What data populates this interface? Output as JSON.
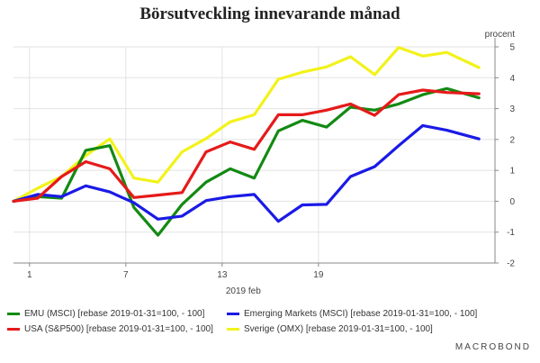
{
  "chart_data": {
    "type": "line",
    "title": "Börsutveckling innevarande månad",
    "ylabel": "procent",
    "xlabel": "2019 feb",
    "x_tick_labels": [
      {
        "x": 1,
        "label": "1"
      },
      {
        "x": 7,
        "label": "7"
      },
      {
        "x": 13,
        "label": "13"
      },
      {
        "x": 19,
        "label": "19"
      }
    ],
    "xlim": [
      0,
      28
    ],
    "ylim": [
      -2,
      5
    ],
    "y_ticks": [
      5,
      4,
      3,
      2,
      1,
      0,
      -1,
      -2
    ],
    "grid": true,
    "legend_position": "bottom",
    "x": [
      0,
      1.5,
      3,
      4.5,
      6,
      7.5,
      9,
      10.5,
      12,
      13.5,
      15,
      16.5,
      18,
      19.5,
      21,
      22.5,
      24,
      25.5,
      27
    ],
    "series": [
      {
        "name": "EMU (MSCI) [rebase 2019-01-31=100, - 100]",
        "color": "#138a13",
        "values": [
          0,
          0.15,
          0.1,
          1.65,
          1.8,
          -0.2,
          -1.1,
          -0.1,
          0.62,
          1.05,
          0.75,
          2.28,
          2.62,
          2.4,
          3.05,
          2.95,
          3.15,
          3.45,
          3.65
        ]
      },
      {
        "name": "Emerging Markets (MSCI) [rebase 2019-01-31=100, - 100]",
        "color": "#1a1ae6",
        "values": [
          0,
          0.22,
          0.15,
          0.5,
          0.3,
          -0.05,
          -0.58,
          -0.48,
          0.02,
          0.15,
          0.22,
          -0.65,
          -0.12,
          -0.1,
          0.8,
          1.12,
          1.8,
          2.45,
          2.3
        ]
      },
      {
        "name": "USA (S&P500) [rebase 2019-01-31=100, - 100]",
        "color": "#e61a1a",
        "values": [
          0,
          0.1,
          0.8,
          1.28,
          1.05,
          0.12,
          0.2,
          0.28,
          1.6,
          1.92,
          1.68,
          2.8,
          2.8,
          2.95,
          3.15,
          2.78,
          3.45,
          3.6,
          3.52
        ]
      },
      {
        "name": "Sverige (OMX) [rebase 2019-01-31=100, - 100]",
        "color": "#f2f21a",
        "values": [
          0,
          0.42,
          0.8,
          1.48,
          2.02,
          0.75,
          0.62,
          1.6,
          2.03,
          2.57,
          2.8,
          3.95,
          4.18,
          4.35,
          4.68,
          4.1,
          4.98,
          4.7,
          4.82
        ]
      }
    ],
    "series_last_x": 29,
    "series_last_values": [
      3.35,
      2.02,
      3.48,
      4.33
    ]
  },
  "logo_text": "MACROBOND"
}
